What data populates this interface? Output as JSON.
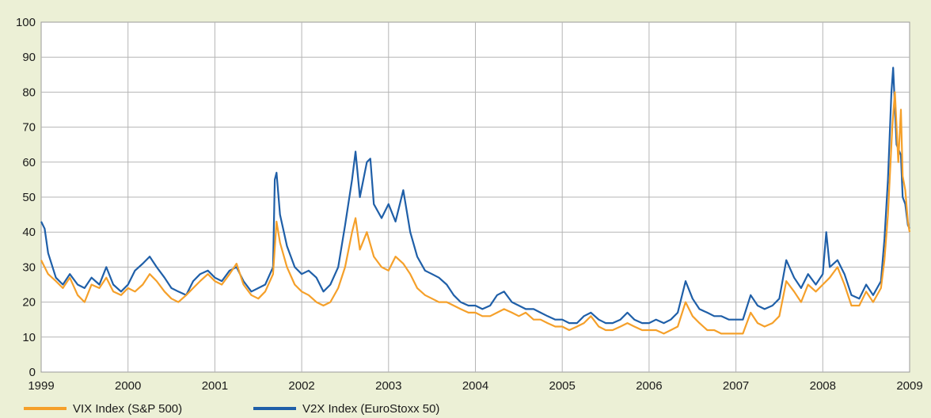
{
  "chart_data": {
    "type": "line",
    "title": "",
    "xlabel": "",
    "ylabel": "",
    "xlim": [
      1999,
      2009
    ],
    "ylim": [
      0,
      100
    ],
    "grid": true,
    "legend_position": "bottom-left",
    "x_ticks": [
      "1999",
      "2000",
      "2001",
      "2002",
      "2003",
      "2004",
      "2005",
      "2006",
      "2007",
      "2008",
      "2009"
    ],
    "y_ticks": [
      "0",
      "10",
      "20",
      "30",
      "40",
      "50",
      "60",
      "70",
      "80",
      "90",
      "100"
    ],
    "series": [
      {
        "name": "VIX Index (S&P 500)",
        "color": "#f5a02a",
        "points": [
          [
            1999.0,
            32
          ],
          [
            1999.08,
            28
          ],
          [
            1999.17,
            26
          ],
          [
            1999.25,
            24
          ],
          [
            1999.33,
            27
          ],
          [
            1999.42,
            22
          ],
          [
            1999.5,
            20
          ],
          [
            1999.58,
            25
          ],
          [
            1999.67,
            24
          ],
          [
            1999.75,
            27
          ],
          [
            1999.83,
            23
          ],
          [
            1999.92,
            22
          ],
          [
            2000.0,
            24
          ],
          [
            2000.08,
            23
          ],
          [
            2000.17,
            25
          ],
          [
            2000.25,
            28
          ],
          [
            2000.33,
            26
          ],
          [
            2000.42,
            23
          ],
          [
            2000.5,
            21
          ],
          [
            2000.58,
            20
          ],
          [
            2000.67,
            22
          ],
          [
            2000.75,
            24
          ],
          [
            2000.83,
            26
          ],
          [
            2000.92,
            28
          ],
          [
            2001.0,
            26
          ],
          [
            2001.08,
            25
          ],
          [
            2001.17,
            28
          ],
          [
            2001.25,
            31
          ],
          [
            2001.33,
            25
          ],
          [
            2001.42,
            22
          ],
          [
            2001.5,
            21
          ],
          [
            2001.58,
            23
          ],
          [
            2001.67,
            28
          ],
          [
            2001.71,
            43
          ],
          [
            2001.75,
            37
          ],
          [
            2001.83,
            30
          ],
          [
            2001.92,
            25
          ],
          [
            2002.0,
            23
          ],
          [
            2002.08,
            22
          ],
          [
            2002.17,
            20
          ],
          [
            2002.25,
            19
          ],
          [
            2002.33,
            20
          ],
          [
            2002.42,
            24
          ],
          [
            2002.5,
            30
          ],
          [
            2002.58,
            40
          ],
          [
            2002.62,
            44
          ],
          [
            2002.67,
            35
          ],
          [
            2002.75,
            40
          ],
          [
            2002.83,
            33
          ],
          [
            2002.92,
            30
          ],
          [
            2003.0,
            29
          ],
          [
            2003.08,
            33
          ],
          [
            2003.17,
            31
          ],
          [
            2003.25,
            28
          ],
          [
            2003.33,
            24
          ],
          [
            2003.42,
            22
          ],
          [
            2003.5,
            21
          ],
          [
            2003.58,
            20
          ],
          [
            2003.67,
            20
          ],
          [
            2003.75,
            19
          ],
          [
            2003.83,
            18
          ],
          [
            2003.92,
            17
          ],
          [
            2004.0,
            17
          ],
          [
            2004.08,
            16
          ],
          [
            2004.17,
            16
          ],
          [
            2004.25,
            17
          ],
          [
            2004.33,
            18
          ],
          [
            2004.42,
            17
          ],
          [
            2004.5,
            16
          ],
          [
            2004.58,
            17
          ],
          [
            2004.67,
            15
          ],
          [
            2004.75,
            15
          ],
          [
            2004.83,
            14
          ],
          [
            2004.92,
            13
          ],
          [
            2005.0,
            13
          ],
          [
            2005.08,
            12
          ],
          [
            2005.17,
            13
          ],
          [
            2005.25,
            14
          ],
          [
            2005.33,
            16
          ],
          [
            2005.42,
            13
          ],
          [
            2005.5,
            12
          ],
          [
            2005.58,
            12
          ],
          [
            2005.67,
            13
          ],
          [
            2005.75,
            14
          ],
          [
            2005.83,
            13
          ],
          [
            2005.92,
            12
          ],
          [
            2006.0,
            12
          ],
          [
            2006.08,
            12
          ],
          [
            2006.17,
            11
          ],
          [
            2006.25,
            12
          ],
          [
            2006.33,
            13
          ],
          [
            2006.42,
            20
          ],
          [
            2006.5,
            16
          ],
          [
            2006.58,
            14
          ],
          [
            2006.67,
            12
          ],
          [
            2006.75,
            12
          ],
          [
            2006.83,
            11
          ],
          [
            2006.92,
            11
          ],
          [
            2007.0,
            11
          ],
          [
            2007.08,
            11
          ],
          [
            2007.17,
            17
          ],
          [
            2007.25,
            14
          ],
          [
            2007.33,
            13
          ],
          [
            2007.42,
            14
          ],
          [
            2007.5,
            16
          ],
          [
            2007.58,
            26
          ],
          [
            2007.67,
            23
          ],
          [
            2007.75,
            20
          ],
          [
            2007.83,
            25
          ],
          [
            2007.92,
            23
          ],
          [
            2008.0,
            25
          ],
          [
            2008.08,
            27
          ],
          [
            2008.17,
            30
          ],
          [
            2008.25,
            25
          ],
          [
            2008.33,
            19
          ],
          [
            2008.42,
            19
          ],
          [
            2008.5,
            23
          ],
          [
            2008.58,
            20
          ],
          [
            2008.67,
            24
          ],
          [
            2008.71,
            32
          ],
          [
            2008.75,
            45
          ],
          [
            2008.8,
            70
          ],
          [
            2008.83,
            80
          ],
          [
            2008.87,
            60
          ],
          [
            2008.9,
            75
          ],
          [
            2008.92,
            56
          ],
          [
            2008.95,
            52
          ],
          [
            2008.98,
            43
          ],
          [
            2009.0,
            40
          ]
        ]
      },
      {
        "name": "V2X Index (EuroStoxx 50)",
        "color": "#1f5fa8",
        "points": [
          [
            1999.0,
            43
          ],
          [
            1999.04,
            41
          ],
          [
            1999.08,
            34
          ],
          [
            1999.17,
            27
          ],
          [
            1999.25,
            25
          ],
          [
            1999.33,
            28
          ],
          [
            1999.42,
            25
          ],
          [
            1999.5,
            24
          ],
          [
            1999.58,
            27
          ],
          [
            1999.67,
            25
          ],
          [
            1999.75,
            30
          ],
          [
            1999.83,
            25
          ],
          [
            1999.92,
            23
          ],
          [
            2000.0,
            25
          ],
          [
            2000.08,
            29
          ],
          [
            2000.17,
            31
          ],
          [
            2000.25,
            33
          ],
          [
            2000.33,
            30
          ],
          [
            2000.42,
            27
          ],
          [
            2000.5,
            24
          ],
          [
            2000.58,
            23
          ],
          [
            2000.67,
            22
          ],
          [
            2000.75,
            26
          ],
          [
            2000.83,
            28
          ],
          [
            2000.92,
            29
          ],
          [
            2001.0,
            27
          ],
          [
            2001.08,
            26
          ],
          [
            2001.17,
            29
          ],
          [
            2001.25,
            30
          ],
          [
            2001.33,
            26
          ],
          [
            2001.42,
            23
          ],
          [
            2001.5,
            24
          ],
          [
            2001.58,
            25
          ],
          [
            2001.67,
            30
          ],
          [
            2001.69,
            55
          ],
          [
            2001.71,
            57
          ],
          [
            2001.75,
            45
          ],
          [
            2001.83,
            36
          ],
          [
            2001.92,
            30
          ],
          [
            2002.0,
            28
          ],
          [
            2002.08,
            29
          ],
          [
            2002.17,
            27
          ],
          [
            2002.25,
            23
          ],
          [
            2002.33,
            25
          ],
          [
            2002.42,
            30
          ],
          [
            2002.5,
            42
          ],
          [
            2002.58,
            55
          ],
          [
            2002.62,
            63
          ],
          [
            2002.67,
            50
          ],
          [
            2002.75,
            60
          ],
          [
            2002.79,
            61
          ],
          [
            2002.83,
            48
          ],
          [
            2002.92,
            44
          ],
          [
            2003.0,
            48
          ],
          [
            2003.08,
            43
          ],
          [
            2003.17,
            52
          ],
          [
            2003.25,
            40
          ],
          [
            2003.33,
            33
          ],
          [
            2003.42,
            29
          ],
          [
            2003.5,
            28
          ],
          [
            2003.58,
            27
          ],
          [
            2003.67,
            25
          ],
          [
            2003.75,
            22
          ],
          [
            2003.83,
            20
          ],
          [
            2003.92,
            19
          ],
          [
            2004.0,
            19
          ],
          [
            2004.08,
            18
          ],
          [
            2004.17,
            19
          ],
          [
            2004.25,
            22
          ],
          [
            2004.33,
            23
          ],
          [
            2004.42,
            20
          ],
          [
            2004.5,
            19
          ],
          [
            2004.58,
            18
          ],
          [
            2004.67,
            18
          ],
          [
            2004.75,
            17
          ],
          [
            2004.83,
            16
          ],
          [
            2004.92,
            15
          ],
          [
            2005.0,
            15
          ],
          [
            2005.08,
            14
          ],
          [
            2005.17,
            14
          ],
          [
            2005.25,
            16
          ],
          [
            2005.33,
            17
          ],
          [
            2005.42,
            15
          ],
          [
            2005.5,
            14
          ],
          [
            2005.58,
            14
          ],
          [
            2005.67,
            15
          ],
          [
            2005.75,
            17
          ],
          [
            2005.83,
            15
          ],
          [
            2005.92,
            14
          ],
          [
            2006.0,
            14
          ],
          [
            2006.08,
            15
          ],
          [
            2006.17,
            14
          ],
          [
            2006.25,
            15
          ],
          [
            2006.33,
            17
          ],
          [
            2006.42,
            26
          ],
          [
            2006.5,
            21
          ],
          [
            2006.58,
            18
          ],
          [
            2006.67,
            17
          ],
          [
            2006.75,
            16
          ],
          [
            2006.83,
            16
          ],
          [
            2006.92,
            15
          ],
          [
            2007.0,
            15
          ],
          [
            2007.08,
            15
          ],
          [
            2007.17,
            22
          ],
          [
            2007.25,
            19
          ],
          [
            2007.33,
            18
          ],
          [
            2007.42,
            19
          ],
          [
            2007.5,
            21
          ],
          [
            2007.58,
            32
          ],
          [
            2007.67,
            27
          ],
          [
            2007.75,
            24
          ],
          [
            2007.83,
            28
          ],
          [
            2007.92,
            25
          ],
          [
            2008.0,
            28
          ],
          [
            2008.04,
            40
          ],
          [
            2008.08,
            30
          ],
          [
            2008.17,
            32
          ],
          [
            2008.25,
            28
          ],
          [
            2008.33,
            22
          ],
          [
            2008.42,
            21
          ],
          [
            2008.5,
            25
          ],
          [
            2008.58,
            22
          ],
          [
            2008.67,
            26
          ],
          [
            2008.71,
            38
          ],
          [
            2008.75,
            55
          ],
          [
            2008.79,
            80
          ],
          [
            2008.81,
            87
          ],
          [
            2008.85,
            65
          ],
          [
            2008.9,
            62
          ],
          [
            2008.92,
            50
          ],
          [
            2008.95,
            48
          ],
          [
            2008.98,
            42
          ],
          [
            2009.0,
            41
          ]
        ]
      }
    ]
  }
}
